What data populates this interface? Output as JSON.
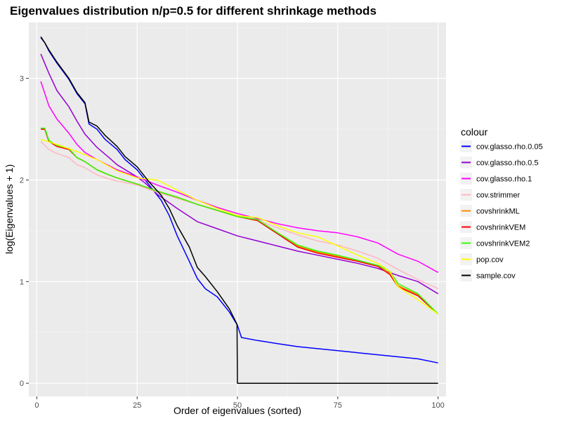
{
  "chart_data": {
    "type": "line",
    "title": "Eigenvalues distribution n/p=0.5 for different shrinkage methods",
    "xlabel": "Order of eigenvalues (sorted)",
    "ylabel": "log(Eigenvalues + 1)",
    "xlim": [
      -2,
      102
    ],
    "ylim": [
      -0.13,
      3.55
    ],
    "x_ticks": [
      0,
      25,
      50,
      75,
      100
    ],
    "y_ticks": [
      0,
      1,
      2,
      3
    ],
    "grid": true,
    "legend_title": "colour",
    "legend_position": "right",
    "series": [
      {
        "name": "cov.glasso.rho.0.05",
        "color": "#0000FF",
        "x": [
          1,
          2,
          3,
          5,
          8,
          10,
          12,
          13,
          15,
          17,
          20,
          22,
          25,
          28,
          31,
          33,
          35,
          38,
          40,
          42,
          45,
          48,
          50,
          51,
          55,
          60,
          65,
          70,
          75,
          80,
          85,
          90,
          95,
          100
        ],
        "y": [
          3.4,
          3.35,
          3.27,
          3.15,
          2.99,
          2.85,
          2.75,
          2.55,
          2.5,
          2.4,
          2.3,
          2.2,
          2.1,
          1.95,
          1.8,
          1.65,
          1.45,
          1.2,
          1.03,
          0.93,
          0.85,
          0.7,
          0.57,
          0.45,
          0.42,
          0.39,
          0.36,
          0.34,
          0.32,
          0.3,
          0.28,
          0.26,
          0.24,
          0.2
        ]
      },
      {
        "name": "cov.glasso.rho.0.5",
        "color": "#9400D3",
        "x": [
          1,
          3,
          5,
          8,
          10,
          12,
          15,
          18,
          20,
          25,
          27,
          30,
          35,
          40,
          45,
          50,
          55,
          60,
          65,
          70,
          75,
          80,
          85,
          90,
          95,
          100
        ],
        "y": [
          3.24,
          3.05,
          2.88,
          2.72,
          2.58,
          2.45,
          2.32,
          2.22,
          2.15,
          2.03,
          1.97,
          1.86,
          1.72,
          1.59,
          1.52,
          1.45,
          1.4,
          1.35,
          1.3,
          1.26,
          1.22,
          1.18,
          1.13,
          1.06,
          1.0,
          0.88
        ]
      },
      {
        "name": "cov.glasso.rho.1",
        "color": "#FF00FF",
        "x": [
          1,
          3,
          5,
          8,
          10,
          12,
          15,
          18,
          20,
          25,
          30,
          35,
          40,
          45,
          50,
          55,
          60,
          65,
          70,
          75,
          80,
          85,
          90,
          95,
          100
        ],
        "y": [
          2.97,
          2.73,
          2.6,
          2.46,
          2.35,
          2.27,
          2.2,
          2.14,
          2.1,
          2.03,
          1.95,
          1.88,
          1.8,
          1.73,
          1.67,
          1.62,
          1.57,
          1.53,
          1.5,
          1.48,
          1.44,
          1.38,
          1.27,
          1.2,
          1.09
        ]
      },
      {
        "name": "cov.strimmer",
        "color": "#FFB6C1",
        "x": [
          1,
          3,
          5,
          8,
          10,
          12,
          15,
          18,
          20,
          25,
          30,
          35,
          40,
          45,
          50,
          55,
          60,
          65,
          70,
          75,
          80,
          85,
          90,
          95,
          100
        ],
        "y": [
          2.38,
          2.3,
          2.26,
          2.22,
          2.15,
          2.12,
          2.05,
          2.01,
          1.99,
          1.95,
          1.88,
          1.82,
          1.76,
          1.7,
          1.65,
          1.6,
          1.53,
          1.46,
          1.4,
          1.36,
          1.3,
          1.23,
          1.12,
          1.02,
          0.93
        ]
      },
      {
        "name": "covshrinkML",
        "color": "#FF8C00",
        "x": [
          1,
          2,
          3,
          5,
          8,
          10,
          12,
          15,
          18,
          20,
          25,
          30,
          35,
          40,
          45,
          50,
          55,
          60,
          65,
          70,
          75,
          80,
          85,
          88,
          90,
          95,
          100
        ],
        "y": [
          2.5,
          2.5,
          2.38,
          2.33,
          2.3,
          2.22,
          2.18,
          2.1,
          2.05,
          2.02,
          1.96,
          1.89,
          1.83,
          1.76,
          1.7,
          1.64,
          1.6,
          1.48,
          1.35,
          1.29,
          1.25,
          1.2,
          1.15,
          1.08,
          0.96,
          0.87,
          0.68
        ]
      },
      {
        "name": "covshrinkVEM",
        "color": "#FF0000",
        "x": [
          1,
          2,
          3,
          5,
          8,
          10,
          12,
          15,
          18,
          20,
          25,
          30,
          35,
          40,
          45,
          50,
          55,
          60,
          65,
          70,
          75,
          80,
          85,
          88,
          90,
          95,
          100
        ],
        "y": [
          2.5,
          2.5,
          2.38,
          2.33,
          2.3,
          2.22,
          2.18,
          2.1,
          2.05,
          2.02,
          1.96,
          1.89,
          1.83,
          1.76,
          1.7,
          1.64,
          1.6,
          1.47,
          1.34,
          1.28,
          1.24,
          1.2,
          1.15,
          1.07,
          0.95,
          0.86,
          0.68
        ]
      },
      {
        "name": "covshrinkVEM2",
        "color": "#32FF00",
        "x": [
          1,
          2,
          3,
          5,
          8,
          10,
          12,
          15,
          18,
          20,
          25,
          30,
          35,
          40,
          45,
          50,
          55,
          60,
          65,
          70,
          75,
          80,
          85,
          88,
          90,
          95,
          100
        ],
        "y": [
          2.51,
          2.51,
          2.39,
          2.34,
          2.31,
          2.22,
          2.18,
          2.1,
          2.05,
          2.02,
          1.96,
          1.89,
          1.83,
          1.76,
          1.7,
          1.64,
          1.61,
          1.48,
          1.36,
          1.3,
          1.26,
          1.21,
          1.16,
          1.1,
          0.98,
          0.88,
          0.68
        ]
      },
      {
        "name": "pop.cov",
        "color": "#FFFF00",
        "x": [
          1,
          5,
          10,
          15,
          20,
          25,
          30,
          35,
          40,
          45,
          50,
          55,
          60,
          65,
          70,
          75,
          80,
          85,
          88,
          90,
          95,
          100
        ],
        "y": [
          2.4,
          2.35,
          2.28,
          2.2,
          2.09,
          2.02,
          2.0,
          1.9,
          1.8,
          1.72,
          1.65,
          1.63,
          1.55,
          1.48,
          1.44,
          1.35,
          1.26,
          1.18,
          1.1,
          0.95,
          0.82,
          0.68
        ]
      },
      {
        "name": "sample.cov",
        "color": "#000000",
        "x": [
          1,
          2,
          3,
          5,
          8,
          10,
          12,
          13,
          15,
          17,
          20,
          22,
          25,
          28,
          31,
          33,
          35,
          38,
          40,
          42,
          45,
          48,
          49.9,
          50,
          55,
          60,
          65,
          70,
          75,
          80,
          85,
          90,
          95,
          100
        ],
        "y": [
          3.41,
          3.35,
          3.28,
          3.16,
          3.0,
          2.86,
          2.76,
          2.57,
          2.53,
          2.44,
          2.33,
          2.23,
          2.13,
          1.98,
          1.85,
          1.72,
          1.55,
          1.34,
          1.14,
          1.05,
          0.9,
          0.73,
          0.58,
          0.0,
          0.0,
          0.0,
          0.0,
          0.0,
          0.0,
          0.0,
          0.0,
          0.0,
          0.0,
          0.0
        ]
      }
    ]
  }
}
